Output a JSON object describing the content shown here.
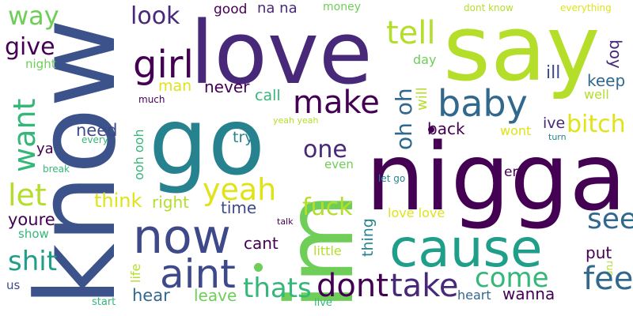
{
  "palette": {
    "dark_purple": "#440154",
    "purple": "#482878",
    "indigo": "#3e4989",
    "blue": "#31688e",
    "teal": "#26828e",
    "teal_green": "#1f9e89",
    "green": "#35b779",
    "light_green": "#6ece58",
    "lime": "#b5de2b",
    "yellow": "#dfe318"
  },
  "words": [
    {
      "text": "know",
      "color": "#3b528b"
    },
    {
      "text": "love",
      "color": "#482878"
    },
    {
      "text": "say",
      "color": "#b5de2b"
    },
    {
      "text": "go",
      "color": "#26828e"
    },
    {
      "text": "im",
      "color": "#6ece58"
    },
    {
      "text": "nigga",
      "color": "#440154"
    },
    {
      "text": "cause",
      "color": "#1f9e89"
    },
    {
      "text": "now",
      "color": "#3e4989"
    },
    {
      "text": "way",
      "color": "#6ece58"
    },
    {
      "text": "look",
      "color": "#482878"
    },
    {
      "text": "good",
      "color": "#440154"
    },
    {
      "text": "na na",
      "color": "#482878"
    },
    {
      "text": "money",
      "color": "#6ece58"
    },
    {
      "text": "dont know",
      "color": "#b5de2b"
    },
    {
      "text": "everything",
      "color": "#dfe318"
    },
    {
      "text": "give",
      "color": "#440154"
    },
    {
      "text": "night",
      "color": "#6ece58"
    },
    {
      "text": "girl",
      "color": "#440154"
    },
    {
      "text": "tell",
      "color": "#b5de2b"
    },
    {
      "text": "day",
      "color": "#6ece58"
    },
    {
      "text": "boy",
      "color": "#482878"
    },
    {
      "text": "oh oh",
      "color": "#31688e"
    },
    {
      "text": "ill",
      "color": "#3e4989"
    },
    {
      "text": "keep",
      "color": "#31688e"
    },
    {
      "text": "man",
      "color": "#dfe318"
    },
    {
      "text": "never",
      "color": "#440154"
    },
    {
      "text": "make",
      "color": "#440154"
    },
    {
      "text": "baby",
      "color": "#31688e"
    },
    {
      "text": "will",
      "color": "#b5de2b"
    },
    {
      "text": "well",
      "color": "#b5de2b"
    },
    {
      "text": "want",
      "color": "#35b779"
    },
    {
      "text": "much",
      "color": "#440154"
    },
    {
      "text": "call",
      "color": "#35b779"
    },
    {
      "text": "ive",
      "color": "#482878"
    },
    {
      "text": "bitch",
      "color": "#dfe318"
    },
    {
      "text": "need",
      "color": "#3e4989"
    },
    {
      "text": "every",
      "color": "#35b779"
    },
    {
      "text": "yeah yeah",
      "color": "#b5de2b"
    },
    {
      "text": "back",
      "color": "#440154"
    },
    {
      "text": "wont",
      "color": "#dfe318"
    },
    {
      "text": "turn",
      "color": "#26828e"
    },
    {
      "text": "ya",
      "color": "#440154"
    },
    {
      "text": "ooh ooh",
      "color": "#35b779"
    },
    {
      "text": "try",
      "color": "#26828e"
    },
    {
      "text": "one",
      "color": "#482878"
    },
    {
      "text": "break",
      "color": "#35b779"
    },
    {
      "text": "even",
      "color": "#6ece58"
    },
    {
      "text": "let",
      "color": "#b5de2b"
    },
    {
      "text": "think",
      "color": "#dfe318"
    },
    {
      "text": "right",
      "color": "#b5de2b"
    },
    {
      "text": "yeah",
      "color": "#dfe318"
    },
    {
      "text": "let go",
      "color": "#26828e"
    },
    {
      "text": "em",
      "color": "#440154"
    },
    {
      "text": "time",
      "color": "#3e4989"
    },
    {
      "text": "fuck",
      "color": "#b5de2b"
    },
    {
      "text": "youre",
      "color": "#440154"
    },
    {
      "text": "see",
      "color": "#31688e"
    },
    {
      "text": "love love",
      "color": "#dfe318"
    },
    {
      "text": "talk",
      "color": "#440154"
    },
    {
      "text": "show",
      "color": "#35b779"
    },
    {
      "text": "thing",
      "color": "#26828e"
    },
    {
      "text": "cant",
      "color": "#440154"
    },
    {
      "text": "shit",
      "color": "#1f9e89"
    },
    {
      "text": "put",
      "color": "#440154"
    },
    {
      "text": "little",
      "color": "#b5de2b"
    },
    {
      "text": "life",
      "color": "#b5de2b"
    },
    {
      "text": "aint",
      "color": "#3e4989"
    },
    {
      "text": "run",
      "color": "#b5de2b"
    },
    {
      "text": "come",
      "color": "#35b779"
    },
    {
      "text": "feel",
      "color": "#31688e"
    },
    {
      "text": "thats",
      "color": "#35b779"
    },
    {
      "text": "dont",
      "color": "#440154"
    },
    {
      "text": "take",
      "color": "#482878"
    },
    {
      "text": "us",
      "color": "#3e4989"
    },
    {
      "text": "hear",
      "color": "#31688e"
    },
    {
      "text": "leave",
      "color": "#6ece58"
    },
    {
      "text": "wanna",
      "color": "#440154"
    },
    {
      "text": "heart",
      "color": "#31688e"
    },
    {
      "text": "start",
      "color": "#35b779"
    },
    {
      "text": "live",
      "color": "#35b779"
    }
  ]
}
